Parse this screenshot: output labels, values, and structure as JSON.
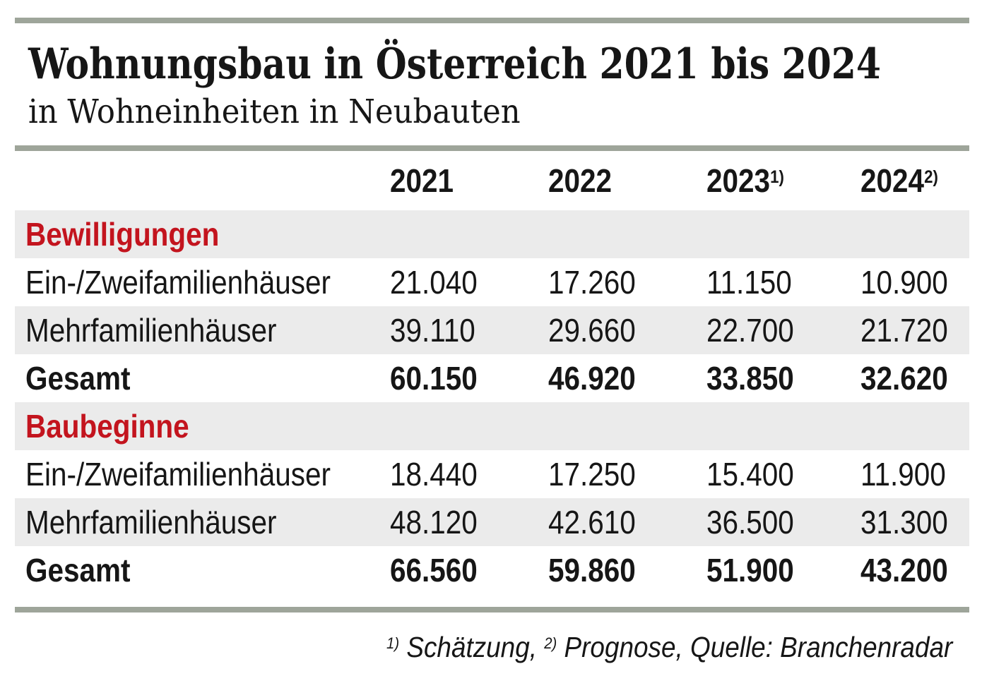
{
  "title": "Wohnungsbau in Österreich 2021 bis 2024",
  "subtitle": "in Wohneinheiten in Neubauten",
  "colors": {
    "accent_red": "#c3141e",
    "divider_bar": "#9ea59a",
    "row_alt_background": "#ebebeb"
  },
  "table": {
    "year_headers": [
      {
        "year": "2021",
        "sup": ""
      },
      {
        "year": "2022",
        "sup": ""
      },
      {
        "year": "2023",
        "sup": "1)"
      },
      {
        "year": "2024",
        "sup": "2)"
      }
    ],
    "sections": [
      {
        "name": "Bewilligungen",
        "rows": [
          {
            "label": "Ein-/Zweifamilienhäuser",
            "values": [
              "21.040",
              "17.260",
              "11.150",
              "10.900"
            ]
          },
          {
            "label": "Mehrfamilienhäuser",
            "values": [
              "39.110",
              "29.660",
              "22.700",
              "21.720"
            ]
          },
          {
            "label": "Gesamt",
            "values": [
              "60.150",
              "46.920",
              "33.850",
              "32.620"
            ]
          }
        ]
      },
      {
        "name": "Baubeginne",
        "rows": [
          {
            "label": "Ein-/Zweifamilienhäuser",
            "values": [
              "18.440",
              "17.250",
              "15.400",
              "11.900"
            ]
          },
          {
            "label": "Mehrfamilienhäuser",
            "values": [
              "48.120",
              "42.610",
              "36.500",
              "31.300"
            ]
          },
          {
            "label": "Gesamt",
            "values": [
              "66.560",
              "59.860",
              "51.900",
              "43.200"
            ]
          }
        ]
      }
    ]
  },
  "footer": {
    "sup1": "1)",
    "part1": " Schätzung, ",
    "sup2": "2)",
    "part2": " Prognose, Quelle: Branchenradar"
  },
  "chart_data": {
    "type": "table",
    "title": "Wohnungsbau in Österreich 2021 bis 2024",
    "subtitle": "in Wohneinheiten in Neubauten",
    "columns": [
      "",
      "2021",
      "2022",
      "2023 1)",
      "2024 2)"
    ],
    "sections": [
      {
        "name": "Bewilligungen",
        "rows": [
          {
            "label": "Ein-/Zweifamilienhäuser",
            "values": [
              21040,
              17260,
              11150,
              10900
            ]
          },
          {
            "label": "Mehrfamilienhäuser",
            "values": [
              39110,
              29660,
              22700,
              21720
            ]
          },
          {
            "label": "Gesamt",
            "values": [
              60150,
              46920,
              33850,
              32620
            ]
          }
        ]
      },
      {
        "name": "Baubeginne",
        "rows": [
          {
            "label": "Ein-/Zweifamilienhäuser",
            "values": [
              18440,
              17250,
              15400,
              11900
            ]
          },
          {
            "label": "Mehrfamilienhäuser",
            "values": [
              48120,
              42610,
              36500,
              31300
            ]
          },
          {
            "label": "Gesamt",
            "values": [
              66560,
              59860,
              51900,
              43200
            ]
          }
        ]
      }
    ],
    "footnotes": [
      {
        "marker": "1)",
        "text": "Schätzung"
      },
      {
        "marker": "2)",
        "text": "Prognose"
      }
    ],
    "source": "Quelle: Branchenradar"
  }
}
